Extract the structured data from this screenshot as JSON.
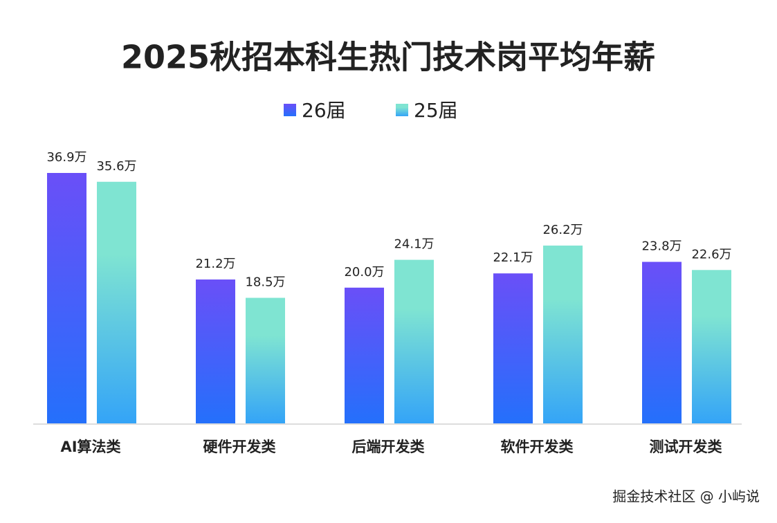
{
  "chart_data": {
    "type": "bar",
    "title": "2025秋招本科生热门技术岗平均年薪",
    "categories": [
      "AI算法类",
      "硬件开发类",
      "后端开发类",
      "软件开发类",
      "测试开发类"
    ],
    "series": [
      {
        "name": "26届",
        "color": "#6a4ff8",
        "values": [
          36.9,
          21.2,
          20.0,
          22.1,
          23.8
        ],
        "value_labels": [
          "36.9万",
          "21.2万",
          "20.0万",
          "22.1万",
          "23.8万"
        ]
      },
      {
        "name": "25届",
        "color": "#7fe4d2",
        "values": [
          35.6,
          18.5,
          24.1,
          26.2,
          22.6
        ],
        "value_labels": [
          "35.6万",
          "18.5万",
          "24.1万",
          "26.2万",
          "22.6万"
        ]
      }
    ],
    "watermark": "掘金技术社区 @ 小屿说"
  }
}
